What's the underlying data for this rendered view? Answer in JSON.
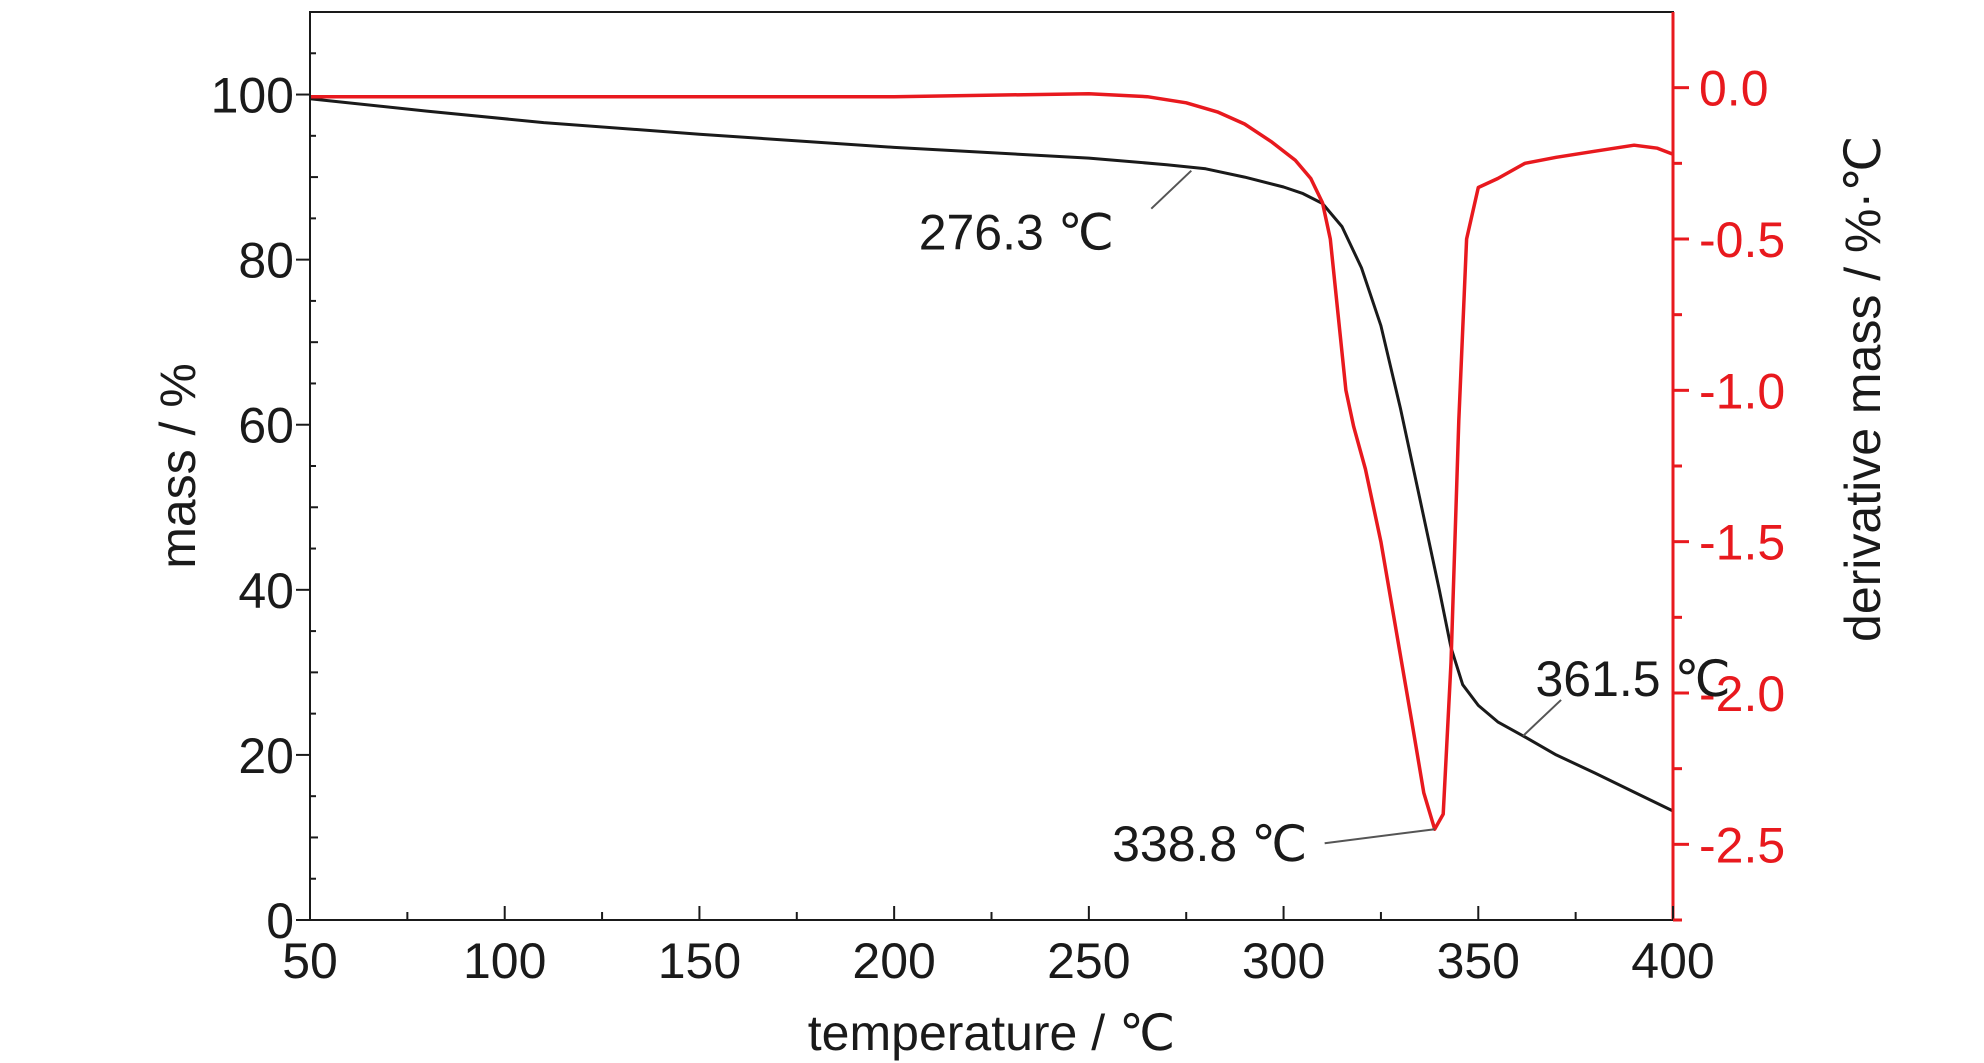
{
  "chart_data": {
    "type": "line",
    "xlabel": "temperature / ℃",
    "ylabel": "mass / %",
    "y2label": "derivative mass / %·℃",
    "xlim": [
      50,
      400
    ],
    "ylim": [
      0,
      110
    ],
    "y2lim": [
      -2.75,
      0.25
    ],
    "x_ticks": [
      50,
      100,
      150,
      200,
      250,
      300,
      350,
      400
    ],
    "y_ticks": [
      0,
      20,
      40,
      60,
      80,
      100
    ],
    "y2_ticks": [
      0.0,
      -0.5,
      -1.0,
      -1.5,
      -2.0,
      -2.5
    ],
    "x_tick_labels": [
      "50",
      "100",
      "150",
      "200",
      "250",
      "300",
      "350",
      "400"
    ],
    "y_tick_labels": [
      "0",
      "20",
      "40",
      "60",
      "80",
      "100"
    ],
    "y2_tick_labels": [
      "0.0",
      "-0.5",
      "-1.0",
      "-1.5",
      "-2.0",
      "-2.5"
    ],
    "grid": false,
    "colors": {
      "mass": "#1a1a1a",
      "derivative": "#e8191e",
      "axis2": "#e8191e"
    },
    "series": [
      {
        "axis": "left",
        "color": "#1a1a1a",
        "points": [
          [
            50,
            99.5
          ],
          [
            80,
            98.0
          ],
          [
            110,
            96.6
          ],
          [
            150,
            95.2
          ],
          [
            200,
            93.6
          ],
          [
            250,
            92.3
          ],
          [
            270,
            91.5
          ],
          [
            280,
            91.0
          ],
          [
            290,
            90.0
          ],
          [
            300,
            88.8
          ],
          [
            305,
            88.0
          ],
          [
            310,
            86.8
          ],
          [
            315,
            84.0
          ],
          [
            320,
            79.0
          ],
          [
            325,
            72.0
          ],
          [
            330,
            62.0
          ],
          [
            335,
            51.0
          ],
          [
            340,
            40.0
          ],
          [
            343,
            33.0
          ],
          [
            346,
            28.5
          ],
          [
            350,
            26.0
          ],
          [
            355,
            24.0
          ],
          [
            361.5,
            22.3
          ],
          [
            370,
            20.0
          ],
          [
            380,
            17.8
          ],
          [
            390,
            15.5
          ],
          [
            400,
            13.2
          ]
        ]
      },
      {
        "axis": "right",
        "color": "#e8191e",
        "points": [
          [
            50,
            -0.03
          ],
          [
            100,
            -0.03
          ],
          [
            150,
            -0.03
          ],
          [
            200,
            -0.03
          ],
          [
            250,
            -0.02
          ],
          [
            265,
            -0.03
          ],
          [
            275,
            -0.05
          ],
          [
            283,
            -0.08
          ],
          [
            290,
            -0.12
          ],
          [
            297,
            -0.18
          ],
          [
            303,
            -0.24
          ],
          [
            307,
            -0.3
          ],
          [
            310,
            -0.38
          ],
          [
            312,
            -0.5
          ],
          [
            314,
            -0.75
          ],
          [
            316,
            -1.0
          ],
          [
            318,
            -1.12
          ],
          [
            321,
            -1.26
          ],
          [
            325,
            -1.5
          ],
          [
            329,
            -1.8
          ],
          [
            333,
            -2.1
          ],
          [
            336,
            -2.33
          ],
          [
            338.8,
            -2.45
          ],
          [
            341,
            -2.4
          ],
          [
            343,
            -1.9
          ],
          [
            345,
            -1.1
          ],
          [
            347,
            -0.5
          ],
          [
            350,
            -0.33
          ],
          [
            355,
            -0.3
          ],
          [
            362,
            -0.25
          ],
          [
            370,
            -0.23
          ],
          [
            380,
            -0.21
          ],
          [
            390,
            -0.19
          ],
          [
            396,
            -0.2
          ],
          [
            400,
            -0.22
          ]
        ]
      }
    ],
    "annotations": [
      {
        "text": "276.3 ℃",
        "x": 276.3,
        "axis": "left",
        "y": 91.5
      },
      {
        "text": "338.8 ℃",
        "x": 338.8,
        "axis": "right",
        "y": -2.45
      },
      {
        "text": "361.5 ℃",
        "x": 361.5,
        "axis": "left",
        "y": 22.3
      }
    ]
  }
}
